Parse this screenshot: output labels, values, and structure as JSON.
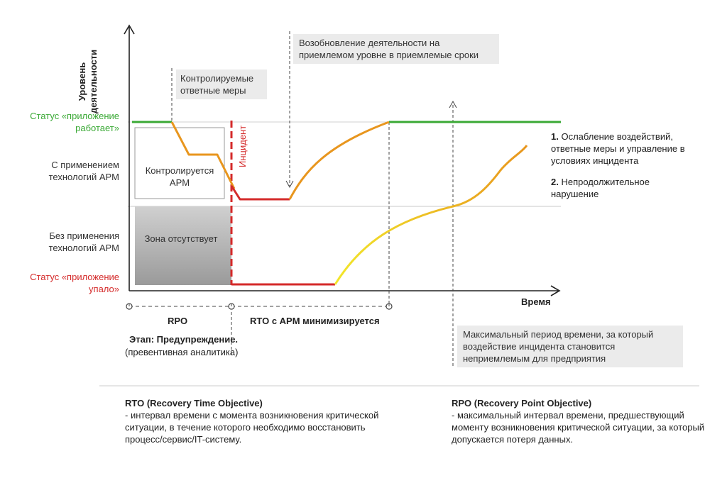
{
  "axes": {
    "y_label_line1": "Уровень",
    "y_label_line2": "деятельности",
    "x_label": "Время"
  },
  "levels": {
    "working": "Статус «приложение работает»",
    "with_apm": "С применением технологий APM",
    "without_apm": "Без применения технологий APM",
    "crashed": "Статус «приложение упало»"
  },
  "boxes": {
    "controlled": "Контролируется APM",
    "absent": "Зона отсутствует"
  },
  "callouts": {
    "controlled_measures": "Контролируемые ответные меры",
    "resumption": "Возобновление деятельности на приемлемом уровне в приемлемые сроки",
    "max_period": "Максимальный период времени, за который воздействие инцидента становится неприемлемым для предприятия"
  },
  "incident_label": "Инцидент",
  "legend": [
    {
      "num": "1.",
      "text": "Ослабление воздействий, ответные меры и управление в условиях инцидента"
    },
    {
      "num": "2.",
      "text": "Непродолжительное нарушение"
    }
  ],
  "timeline": {
    "rpo": "RPO",
    "rto": "RTO с APM минимизируется",
    "stage_title": "Этап: Предупреждение.",
    "stage_sub": "(превентивная аналитика)"
  },
  "definitions": {
    "rto_title": "RTO (Recovery Time Objective)",
    "rto_text": "- интервал времени с момента возникновения критической ситуации, в течение которого необходимо восстановить процесс/сервис/IT-систему.",
    "rpo_title": "RPO (Recovery Point Objective)",
    "rpo_text": "- максимальный интервал времени, предшествующий моменту возникновения критической ситуации, за который допускается потеря данных."
  },
  "colors": {
    "green": "#3aa935",
    "red": "#d42a2a",
    "orange": "#e8961e",
    "yellow": "#eee12a",
    "axis": "#222222",
    "callout_bg": "#ebebeb"
  }
}
